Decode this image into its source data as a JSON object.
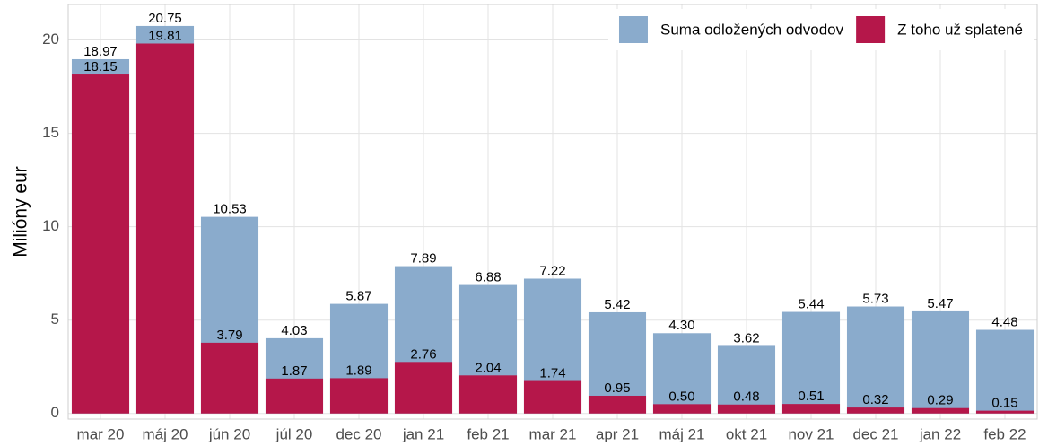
{
  "chart_data": {
    "type": "bar",
    "y_label": "Milióny eur",
    "categories": [
      "mar 20",
      "máj 20",
      "jún 20",
      "júl 20",
      "dec 20",
      "jan 21",
      "feb 21",
      "mar 21",
      "apr 21",
      "máj 21",
      "okt 21",
      "nov 21",
      "dec 21",
      "jan 22",
      "feb 22"
    ],
    "series": [
      {
        "name": "Suma odložených odvodov",
        "color": "#8aabcc",
        "values": [
          18.97,
          20.75,
          10.53,
          4.03,
          5.87,
          7.89,
          6.88,
          7.22,
          5.42,
          4.3,
          3.62,
          5.44,
          5.73,
          5.47,
          4.48
        ],
        "value_labels": [
          "18.97",
          "20.75",
          "10.53",
          "4.03",
          "5.87",
          "7.89",
          "6.88",
          "7.22",
          "5.42",
          "4.30",
          "3.62",
          "5.44",
          "5.73",
          "5.47",
          "4.48"
        ]
      },
      {
        "name": "Z toho už splatené",
        "color": "#b5174a",
        "values": [
          18.15,
          19.81,
          3.79,
          1.87,
          1.89,
          2.76,
          2.04,
          1.74,
          0.95,
          0.5,
          0.48,
          0.51,
          0.32,
          0.29,
          0.15
        ],
        "value_labels": [
          "18.15",
          "19.81",
          "3.79",
          "1.87",
          "1.89",
          "2.76",
          "2.04",
          "1.74",
          "0.95",
          "0.50",
          "0.48",
          "0.51",
          "0.32",
          "0.29",
          "0.15"
        ]
      }
    ],
    "ylim": [
      -0.3,
      21.9
    ],
    "yticks": [
      0,
      5,
      10,
      15,
      20
    ],
    "grid": true,
    "legend": "top-right"
  }
}
